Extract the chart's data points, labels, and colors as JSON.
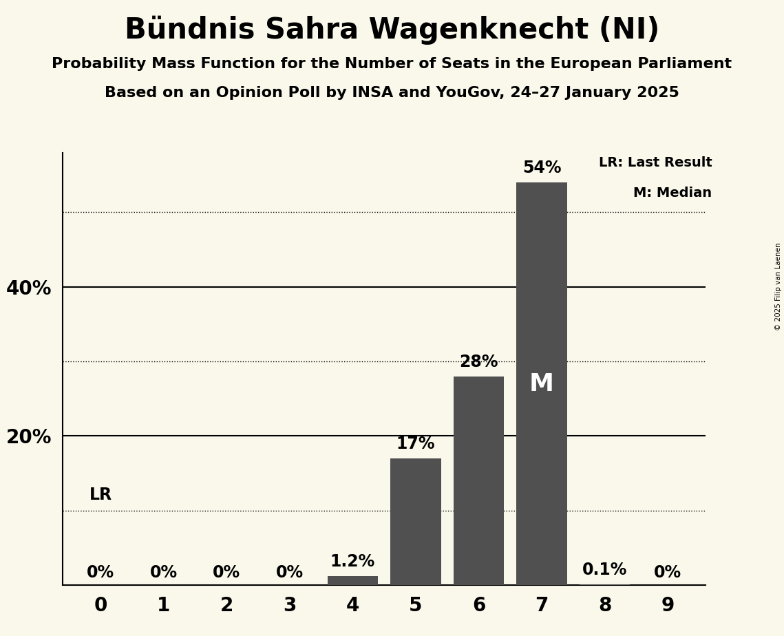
{
  "title": "Bündnis Sahra Wagenknecht (NI)",
  "subtitle1": "Probability Mass Function for the Number of Seats in the European Parliament",
  "subtitle2": "Based on an Opinion Poll by INSA and YouGov, 24–27 January 2025",
  "copyright": "© 2025 Filip van Laenen",
  "categories": [
    0,
    1,
    2,
    3,
    4,
    5,
    6,
    7,
    8,
    9
  ],
  "values": [
    0.0,
    0.0,
    0.0,
    0.0,
    1.2,
    17.0,
    28.0,
    54.0,
    0.1,
    0.0
  ],
  "labels": [
    "0%",
    "0%",
    "0%",
    "0%",
    "1.2%",
    "17%",
    "28%",
    "54%",
    "0.1%",
    "0%"
  ],
  "bar_color": "#505050",
  "background_color": "#faf8eb",
  "dotted_yticks": [
    10,
    30,
    50
  ],
  "solid_yticks": [
    20,
    40
  ],
  "ylim": [
    0,
    58
  ],
  "legend_lr": "LR: Last Result",
  "legend_m": "M: Median",
  "title_fontsize": 30,
  "subtitle_fontsize": 16,
  "label_fontsize": 17,
  "tick_fontsize": 20,
  "median_label_fontsize": 26,
  "legend_fontsize": 14
}
